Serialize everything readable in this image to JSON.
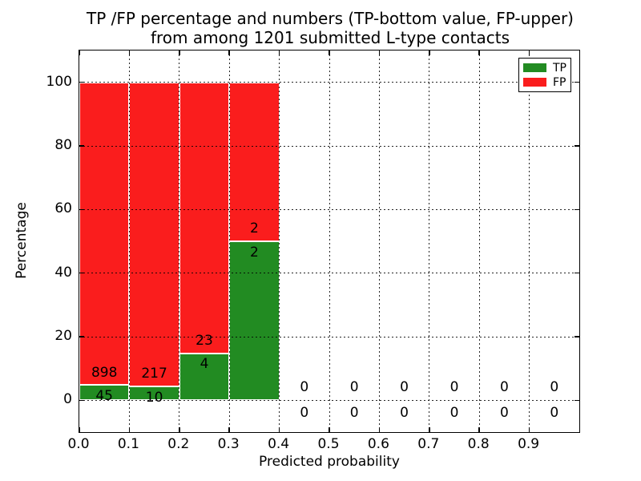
{
  "figure": {
    "title_line1": "TP /FP percentage and numbers (TP-bottom value, FP-upper)",
    "title_line2": "from among 1201 submitted L-type contacts"
  },
  "chart_data": {
    "type": "bar",
    "stacked": true,
    "title": "TP /FP percentage and numbers (TP-bottom value, FP-upper)\nfrom among 1201 submitted L-type contacts",
    "xlabel": "Predicted probability",
    "ylabel": "Percentage",
    "xlim": [
      0.0,
      1.0
    ],
    "ylim": [
      -10,
      110
    ],
    "xtick_values": [
      0.0,
      0.1,
      0.2,
      0.3,
      0.4,
      0.5,
      0.6,
      0.7,
      0.8,
      0.9
    ],
    "xtick_labels": [
      "0.0",
      "0.1",
      "0.2",
      "0.3",
      "0.4",
      "0.5",
      "0.6",
      "0.7",
      "0.8",
      "0.9"
    ],
    "ytick_values": [
      0,
      20,
      40,
      60,
      80,
      100
    ],
    "ytick_labels": [
      "0",
      "20",
      "40",
      "60",
      "80",
      "100"
    ],
    "grid": "dotted, drawn over bars",
    "total_contacts": 1201,
    "legend": {
      "position": "upper right",
      "entries": [
        {
          "label": "TP",
          "color": "#228B22"
        },
        {
          "label": "FP",
          "color": "#FA1D1D"
        }
      ]
    },
    "bins": [
      {
        "x0": 0.0,
        "x1": 0.1,
        "tp": 45,
        "fp": 898,
        "tp_pct": 4.77,
        "fp_pct": 95.23
      },
      {
        "x0": 0.1,
        "x1": 0.2,
        "tp": 10,
        "fp": 217,
        "tp_pct": 4.41,
        "fp_pct": 95.59
      },
      {
        "x0": 0.2,
        "x1": 0.3,
        "tp": 4,
        "fp": 23,
        "tp_pct": 14.81,
        "fp_pct": 85.19
      },
      {
        "x0": 0.3,
        "x1": 0.4,
        "tp": 2,
        "fp": 2,
        "tp_pct": 50.0,
        "fp_pct": 50.0
      },
      {
        "x0": 0.4,
        "x1": 0.5,
        "tp": 0,
        "fp": 0,
        "tp_pct": 0,
        "fp_pct": 0
      },
      {
        "x0": 0.5,
        "x1": 0.6,
        "tp": 0,
        "fp": 0,
        "tp_pct": 0,
        "fp_pct": 0
      },
      {
        "x0": 0.6,
        "x1": 0.7,
        "tp": 0,
        "fp": 0,
        "tp_pct": 0,
        "fp_pct": 0
      },
      {
        "x0": 0.7,
        "x1": 0.8,
        "tp": 0,
        "fp": 0,
        "tp_pct": 0,
        "fp_pct": 0
      },
      {
        "x0": 0.8,
        "x1": 0.9,
        "tp": 0,
        "fp": 0,
        "tp_pct": 0,
        "fp_pct": 0
      },
      {
        "x0": 0.9,
        "x1": 1.0,
        "tp": 0,
        "fp": 0,
        "tp_pct": 0,
        "fp_pct": 0
      }
    ]
  },
  "colors": {
    "tp_green": "#228B22",
    "fp_red": "#FA1D1D",
    "frame": "#000000",
    "background": "#FFFFFF"
  }
}
